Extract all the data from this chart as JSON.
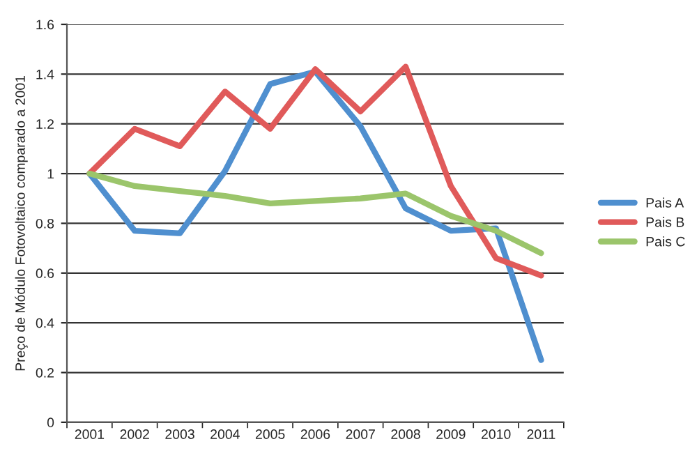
{
  "chart_data": {
    "type": "line",
    "ylabel": "Preço de Módulo Fotovoltaico comparado a 2001",
    "categories": [
      "2001",
      "2002",
      "2003",
      "2004",
      "2005",
      "2006",
      "2007",
      "2008",
      "2009",
      "2010",
      "2011"
    ],
    "series": [
      {
        "name": "Pais A",
        "color": "#4f8fcf",
        "values": [
          1,
          0.77,
          0.76,
          1.01,
          1.36,
          1.41,
          1.19,
          0.86,
          0.77,
          0.78,
          0.25
        ]
      },
      {
        "name": "Pais B",
        "color": "#e05a5a",
        "values": [
          1,
          1.18,
          1.11,
          1.33,
          1.18,
          1.42,
          1.25,
          1.43,
          0.95,
          0.66,
          0.59
        ]
      },
      {
        "name": "Pais C",
        "color": "#9bc56b",
        "values": [
          1,
          0.95,
          0.93,
          0.91,
          0.88,
          0.89,
          0.9,
          0.92,
          0.83,
          0.77,
          0.68
        ]
      }
    ],
    "ylim": [
      0,
      1.6
    ],
    "yticks": [
      0,
      0.2,
      0.4,
      0.6,
      0.8,
      1,
      1.2,
      1.4,
      1.6
    ],
    "grid": "y",
    "legend": "right",
    "marker": "none",
    "line_style": "solid"
  }
}
